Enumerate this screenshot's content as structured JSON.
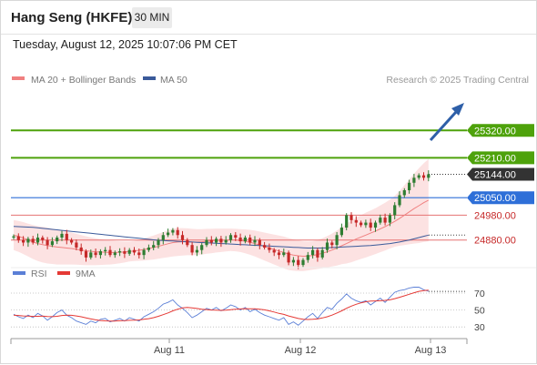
{
  "header": {
    "title": "Hang Seng (HKFE)",
    "timeframe": "30 MIN",
    "timestamp": "Tuesday, August 12, 2025 10:07:06 PM CET"
  },
  "legend": {
    "bollinger": "MA 20 + Bollinger Bands",
    "ma50": "MA 50",
    "rsi": "RSI",
    "ma9": "9MA"
  },
  "copyright": "Research © 2025 Trading Central",
  "colors": {
    "up": "#2e7d32",
    "down": "#c62828",
    "target": "#4ea20b",
    "pivot": "#2e6fd8",
    "support": "#e57373",
    "current": "#333333",
    "band": "#fbd5d5",
    "ma20": "#f08080",
    "ma50": "#3a5a9a",
    "rsi": "#5b7fd6",
    "rsi_ma": "#e53935",
    "arrow": "#2e5fa8"
  },
  "chart_data": [
    {
      "type": "candlestick",
      "title": "Hang Seng (HKFE)",
      "ylim": [
        24700,
        25400
      ],
      "x_ticks": [
        "Aug 11",
        "Aug 12",
        "Aug 13"
      ],
      "levels": [
        {
          "value": 25320.0,
          "label": "25320.00",
          "kind": "target"
        },
        {
          "value": 25210.0,
          "label": "25210.00",
          "kind": "target"
        },
        {
          "value": 25144.0,
          "label": "25144.00",
          "kind": "current"
        },
        {
          "value": 25050.0,
          "label": "25050.00",
          "kind": "pivot"
        },
        {
          "value": 24980.0,
          "label": "24980.00",
          "kind": "support"
        },
        {
          "value": 24880.0,
          "label": "24880.00",
          "kind": "support"
        }
      ],
      "closes": [
        24895,
        24880,
        24870,
        24885,
        24870,
        24890,
        24880,
        24860,
        24875,
        24890,
        24905,
        24880,
        24870,
        24850,
        24835,
        24810,
        24830,
        24820,
        24835,
        24840,
        24820,
        24830,
        24835,
        24825,
        24840,
        24830,
        24820,
        24840,
        24850,
        24860,
        24880,
        24900,
        24910,
        24920,
        24900,
        24880,
        24860,
        24830,
        24840,
        24860,
        24880,
        24870,
        24885,
        24870,
        24880,
        24900,
        24890,
        24875,
        24890,
        24870,
        24880,
        24860,
        24850,
        24840,
        24830,
        24820,
        24830,
        24790,
        24800,
        24780,
        24800,
        24820,
        24840,
        24810,
        24840,
        24870,
        24860,
        24900,
        24930,
        24980,
        24960,
        24950,
        24940,
        24950,
        24930,
        24950,
        24970,
        24950,
        24980,
        25020,
        25060,
        25080,
        25110,
        25130,
        25140,
        25130,
        25144
      ],
      "ma20": [
        24900,
        24895,
        24888,
        24880,
        24872,
        24866,
        24862,
        24858,
        24855,
        24852,
        24850,
        24848,
        24846,
        24843,
        24840,
        24837,
        24835,
        24833,
        24832,
        24831,
        24830,
        24830,
        24831,
        24832,
        24834,
        24836,
        24839,
        24842,
        24846,
        24850,
        24855,
        24860,
        24865,
        24870,
        24872,
        24873,
        24873,
        24872,
        24872,
        24873,
        24875,
        24876,
        24878,
        24879,
        24880,
        24881,
        24880,
        24878,
        24875,
        24871,
        24866,
        24860,
        24854,
        24848,
        24842,
        24836,
        24830,
        24824,
        24820,
        24817,
        24815,
        24816,
        24818,
        24822,
        24827,
        24833,
        24840,
        24848,
        24857,
        24866,
        24875,
        24884,
        24892,
        24900,
        24908,
        24916,
        24925,
        24934,
        24944,
        24955,
        24967,
        24980,
        24993,
        25006,
        25018,
        25030,
        25040
      ],
      "ma50": [
        24935,
        24934,
        24933,
        24932,
        24931,
        24929,
        24927,
        24925,
        24923,
        24921,
        24919,
        24917,
        24915,
        24913,
        24911,
        24909,
        24907,
        24905,
        24903,
        24901,
        24899,
        24897,
        24895,
        24893,
        24891,
        24889,
        24887,
        24885,
        24883,
        24881,
        24879,
        24878,
        24877,
        24876,
        24875,
        24874,
        24873,
        24872,
        24871,
        24870,
        24869,
        24868,
        24867,
        24866,
        24865,
        24864,
        24863,
        24862,
        24861,
        24860,
        24859,
        24858,
        24857,
        24856,
        24855,
        24854,
        24853,
        24852,
        24851,
        24850,
        24849,
        24848,
        24848,
        24848,
        24848,
        24849,
        24850,
        24851,
        24852,
        24853,
        24854,
        24855,
        24856,
        24857,
        24858,
        24860,
        24862,
        24864,
        24866,
        24869,
        24872,
        24876,
        24880,
        24885,
        24890,
        24895,
        24900
      ],
      "bb_width": [
        60,
        62,
        64,
        66,
        68,
        70,
        72,
        72,
        71,
        70,
        68,
        66,
        64,
        62,
        60,
        58,
        56,
        54,
        52,
        50,
        48,
        46,
        44,
        42,
        40,
        40,
        42,
        44,
        46,
        48,
        50,
        52,
        54,
        56,
        56,
        55,
        54,
        53,
        52,
        51,
        50,
        49,
        48,
        47,
        46,
        45,
        45,
        46,
        48,
        50,
        52,
        54,
        56,
        58,
        60,
        62,
        64,
        64,
        63,
        62,
        60,
        58,
        57,
        58,
        60,
        63,
        66,
        70,
        74,
        80,
        84,
        86,
        88,
        90,
        91,
        92,
        94,
        96,
        98,
        102,
        110,
        120,
        130,
        140,
        150,
        158,
        165
      ]
    },
    {
      "type": "line",
      "series": [
        {
          "name": "RSI",
          "values": [
            45,
            42,
            40,
            44,
            41,
            46,
            43,
            38,
            42,
            47,
            50,
            44,
            41,
            37,
            35,
            33,
            37,
            35,
            39,
            40,
            36,
            38,
            40,
            37,
            41,
            39,
            37,
            42,
            45,
            48,
            52,
            57,
            59,
            62,
            56,
            52,
            47,
            41,
            44,
            48,
            52,
            50,
            53,
            49,
            52,
            56,
            54,
            50,
            53,
            48,
            51,
            47,
            44,
            42,
            40,
            38,
            41,
            33,
            36,
            32,
            37,
            42,
            46,
            40,
            47,
            53,
            51,
            58,
            63,
            69,
            64,
            61,
            59,
            61,
            56,
            60,
            64,
            59,
            65,
            71,
            73,
            74,
            76,
            77,
            77,
            74,
            72
          ]
        },
        {
          "name": "9MA",
          "values": [
            44,
            43.5,
            43,
            42.8,
            42.5,
            42.6,
            42.8,
            42.4,
            42.2,
            42.6,
            43.5,
            44,
            43.8,
            43,
            42,
            40.8,
            39.5,
            38.4,
            37.6,
            37.2,
            37,
            37,
            37.3,
            37.4,
            37.8,
            38,
            38.3,
            39,
            39.8,
            41,
            42.6,
            44.5,
            46.6,
            49,
            51,
            52.5,
            53,
            52.6,
            51.8,
            51,
            50.5,
            50,
            49.8,
            49.6,
            49.8,
            50.4,
            51,
            51.3,
            51.6,
            51.5,
            51.4,
            51,
            50.2,
            49,
            47.6,
            46,
            44.8,
            43,
            41.5,
            40,
            39,
            38.8,
            39,
            39.5,
            40.6,
            42,
            44,
            46.4,
            49,
            52,
            54.6,
            56.8,
            58.5,
            59.8,
            60.5,
            60.8,
            61,
            61.4,
            62,
            63.4,
            65,
            66.8,
            68.6,
            70.4,
            72,
            73,
            73.6
          ]
        }
      ],
      "y_ticks": [
        "70",
        "50",
        "30"
      ],
      "ylim": [
        20,
        82
      ]
    }
  ]
}
